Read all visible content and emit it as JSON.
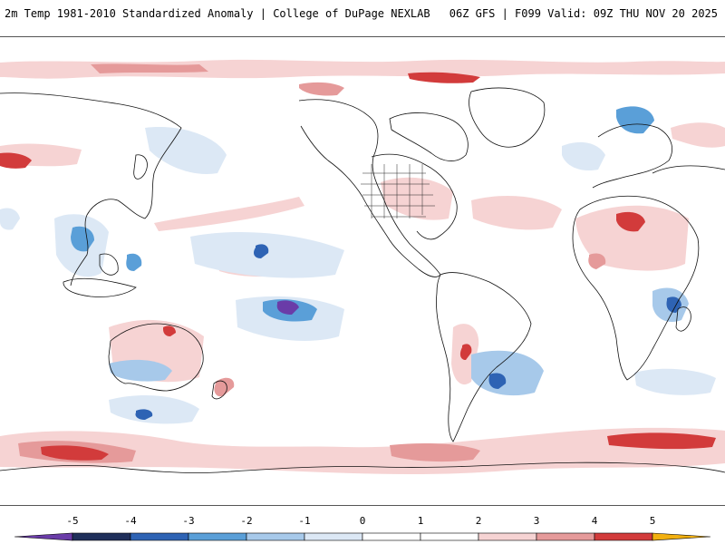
{
  "header": {
    "title": "2m Temp 1981-2010 Standardized Anomaly | College of DuPage NEXLAB",
    "run_info": "06Z GFS | F099 Valid: 09Z THU NOV 20 2025"
  },
  "map": {
    "field": "2m temperature standardized anomaly",
    "projection": "global cylindrical, Pacific-centered"
  },
  "colorbar": {
    "ticks": [
      "-5",
      "-4",
      "-3",
      "-2",
      "-1",
      "0",
      "1",
      "2",
      "3",
      "4",
      "5"
    ],
    "colors": [
      "#1f2f5a",
      "#2e63b4",
      "#5a9fd8",
      "#a7c9ea",
      "#dce8f5",
      "#ffffff",
      "#ffffff",
      "#f6d3d3",
      "#e59a9a",
      "#d23b3b",
      "#9c0e18"
    ],
    "low_end_color": "#6a3ca8",
    "high_end_color": "#f2b010"
  }
}
